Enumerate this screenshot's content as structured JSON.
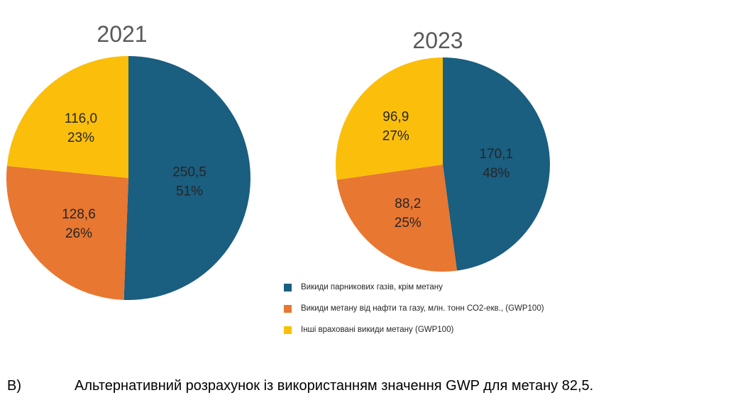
{
  "chart_data": [
    {
      "type": "pie",
      "title": "2021",
      "categories": [
        "Викиди парникових газів, крім метану",
        "Викиди метану від нафти та газу, млн. тонн СО2-екв., (GWP100)",
        "Інші враховані викиди метану (GWP100)"
      ],
      "values": [
        250.5,
        128.6,
        116.0
      ],
      "value_labels": [
        "250,5",
        "128,6",
        "116,0"
      ],
      "percent_labels": [
        "51%",
        "26%",
        "23%"
      ],
      "start": "12 o'clock",
      "direction": "clockwise",
      "legend": "shared, below right"
    },
    {
      "type": "pie",
      "title": "2023",
      "categories": [
        "Викиди парникових газів, крім метану",
        "Викиди метану від нафти та газу, млн. тонн СО2-екв., (GWP100)",
        "Інші враховані викиди метану (GWP100)"
      ],
      "values": [
        170.1,
        88.2,
        96.9
      ],
      "value_labels": [
        "170,1",
        "88,2",
        "96,9"
      ],
      "percent_labels": [
        "48%",
        "25%",
        "27%"
      ],
      "start": "12 o'clock",
      "direction": "clockwise",
      "legend": "shared, below right"
    }
  ],
  "colors": [
    "#1a5e80",
    "#e87731",
    "#fbbf0b"
  ],
  "legend": [
    "Викиди парникових газів, крім метану",
    "Викиди метану від нафти та газу, млн. тонн СО2-екв., (GWP100)",
    "Інші враховані викиди метану (GWP100)"
  ],
  "caption": {
    "marker": "В)",
    "text": "Альтернативний розрахунок із використанням значення GWP для метану 82,5."
  }
}
